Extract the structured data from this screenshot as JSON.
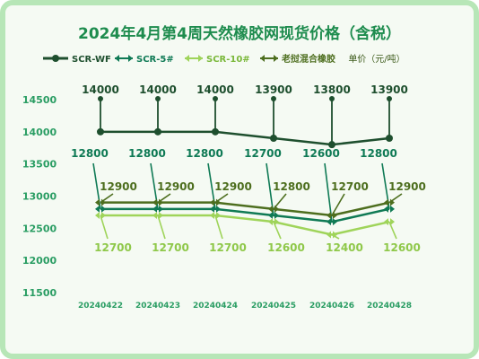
{
  "chart_data": {
    "type": "line",
    "title": "2024年4月第4周天然橡胶网现货价格（含税）",
    "unit_label": "单价（元/吨）",
    "categories": [
      "20240422",
      "20240423",
      "20240424",
      "20240425",
      "20240426",
      "20240428"
    ],
    "ylim": [
      11500,
      14500
    ],
    "yticks": [
      11500,
      12000,
      12500,
      13000,
      13500,
      14000,
      14500
    ],
    "grid": false,
    "legend_position": "top",
    "series": [
      {
        "name": "SCR-WF",
        "color": "#1e4f2e",
        "values": [
          14000,
          14000,
          14000,
          13900,
          13800,
          13900
        ]
      },
      {
        "name": "SCR-5#",
        "color": "#0f7a55",
        "values": [
          12800,
          12800,
          12800,
          12700,
          12600,
          12800
        ]
      },
      {
        "name": "SCR-10#",
        "color": "#9fd45a",
        "values": [
          12700,
          12700,
          12700,
          12600,
          12400,
          12600
        ]
      },
      {
        "name": "老挝混合橡胶",
        "color": "#4d6e1e",
        "values": [
          12900,
          12900,
          12900,
          12800,
          12700,
          12900
        ]
      }
    ],
    "colors": {
      "title": "#1e8c4e",
      "axis_text": "#2a9d63",
      "frame": "#b7e6b7",
      "background": "#f5faf3"
    }
  }
}
